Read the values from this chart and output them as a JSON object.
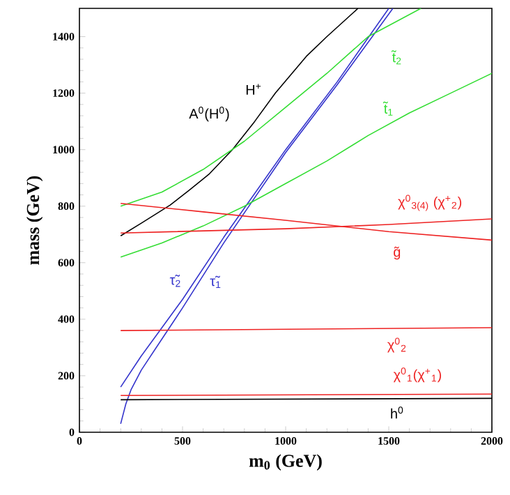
{
  "chart_data": {
    "type": "line",
    "xlabel": "m$_{0}$ (GeV)",
    "ylabel": "mass (GeV)",
    "xlim": [
      0,
      2000
    ],
    "ylim": [
      0,
      1500
    ],
    "xticks": [
      0,
      500,
      1000,
      1500,
      2000
    ],
    "yticks": [
      0,
      200,
      400,
      600,
      800,
      1000,
      1200,
      1400
    ],
    "series": [
      {
        "color": "#000000",
        "x": [
          200,
          300,
          440,
          530,
          628,
          743,
          850,
          950,
          1100,
          1200,
          1351
        ],
        "values": [
          695,
          740,
          804,
          855,
          913,
          1001,
          1100,
          1200,
          1330,
          1400,
          1500
        ]
      },
      {
        "name": "τ̃$_{2}$",
        "color": "#3333cc",
        "x": [
          200,
          300,
          400,
          500,
          700,
          1000,
          1250,
          1500
        ],
        "values": [
          160,
          270,
          370,
          470,
          690,
          1000,
          1240,
          1500
        ]
      },
      {
        "name": "τ̃$_{1}$",
        "color": "#3333cc",
        "x": [
          200,
          225,
          250,
          300,
          400,
          500,
          700,
          1000,
          1250,
          1520
        ],
        "values": [
          30,
          100,
          150,
          220,
          330,
          440,
          670,
          990,
          1230,
          1500
        ]
      },
      {
        "name": "t̃$_{2}$",
        "color": "#33dd33",
        "x": [
          200,
          400,
          600,
          800,
          1000,
          1200,
          1400,
          1656
        ],
        "values": [
          800,
          850,
          930,
          1030,
          1150,
          1270,
          1400,
          1500
        ]
      },
      {
        "name": "t̃$_{1}$",
        "color": "#33dd33",
        "x": [
          200,
          400,
          600,
          800,
          1000,
          1200,
          1400,
          1600,
          1800,
          2000
        ],
        "values": [
          620,
          670,
          730,
          800,
          880,
          960,
          1050,
          1130,
          1200,
          1270
        ]
      },
      {
        "name": "g̃",
        "color": "#ee2222",
        "x": [
          200,
          600,
          1000,
          1500,
          2000
        ],
        "values": [
          810,
          780,
          750,
          710,
          680
        ]
      },
      {
        "name": "χ$^{0}$$_{3(4)}$ (χ$^{+}$$_{2}$)",
        "color": "#ee2222",
        "x": [
          200,
          1000,
          1500,
          2000
        ],
        "values": [
          705,
          720,
          735,
          755
        ]
      },
      {
        "name": "χ$^{0}$$_{2}$",
        "color": "#ee2222",
        "x": [
          200,
          2000
        ],
        "values": [
          360,
          370
        ]
      },
      {
        "name": "χ$^{0}$$_{1}$(χ$^{+}$$_{1}$)",
        "color": "#ee2222",
        "x": [
          200,
          2000
        ],
        "values": [
          130,
          135
        ]
      },
      {
        "name": "h$^{0}$",
        "color": "#000000",
        "x": [
          200,
          2000
        ],
        "values": [
          115,
          120
        ]
      }
    ],
    "annotations": [
      "A$^{0}$(H$^{0}$)",
      "H$^{+}$"
    ]
  }
}
